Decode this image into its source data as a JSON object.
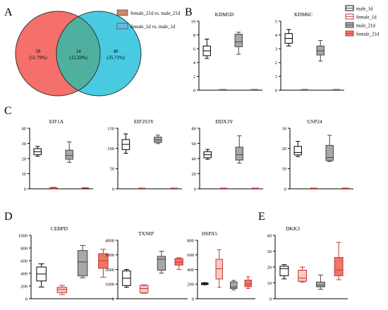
{
  "panel_labels": {
    "A": "A",
    "B": "B",
    "C": "C",
    "D": "D",
    "E": "E"
  },
  "colors": {
    "circle_a": "#f5706a",
    "circle_b": "#48cbe0",
    "legend_a": "#c48a6a",
    "legend_b": "#6cb8e0",
    "male_1d": "#000000",
    "female_1d": "#c0392b",
    "male_21d": "#444444",
    "female_21d": "#c0392b",
    "fill_male_21d": "#a8a8a8",
    "fill_female_21d": "#f1746a",
    "fill_female_1d_D": "#f9c8c8"
  },
  "chart_data": [
    {
      "type": "venn",
      "panel": "A",
      "sets": [
        {
          "name": "female_21d vs. male_21d",
          "only": "58",
          "only_pct": "(51.79%)"
        },
        {
          "name": "female_1d vs. male_1d",
          "only": "40",
          "only_pct": "(35.71%)"
        }
      ],
      "overlap": "14",
      "overlap_pct": "(12.50%)"
    },
    {
      "type": "legend",
      "panel": "B",
      "entries": [
        "male_1d",
        "female_1d",
        "male_21d",
        "female_21d"
      ]
    },
    {
      "type": "box",
      "panel": "B",
      "title": "KDM5D",
      "ylim": [
        0,
        10
      ],
      "yticks": [
        "0",
        "2",
        "4",
        "6",
        "8",
        "10"
      ],
      "groups": [
        {
          "name": "male_1d",
          "min": 4.6,
          "q1": 5.0,
          "median": 5.7,
          "q3": 6.4,
          "max": 7.4,
          "fill": "none"
        },
        {
          "name": "female_1d",
          "min": 0,
          "q1": 0,
          "median": 0,
          "q3": 0,
          "max": 0,
          "fill": "none"
        },
        {
          "name": "male_21d",
          "min": 5.2,
          "q1": 6.3,
          "median": 7.0,
          "q3": 8.1,
          "max": 8.4,
          "fill": "gray"
        },
        {
          "name": "female_21d",
          "min": 0,
          "q1": 0,
          "median": 0,
          "q3": 0,
          "max": 0,
          "fill": "red"
        }
      ]
    },
    {
      "type": "box",
      "panel": "B",
      "title": "KDM6C",
      "ylim": [
        0,
        5
      ],
      "yticks": [
        "0",
        "1",
        "2",
        "3",
        "4",
        "5"
      ],
      "groups": [
        {
          "name": "male_1d",
          "min": 3.2,
          "q1": 3.4,
          "median": 3.75,
          "q3": 4.1,
          "max": 4.4,
          "fill": "none"
        },
        {
          "name": "female_1d",
          "min": 0,
          "q1": 0,
          "median": 0,
          "q3": 0,
          "max": 0,
          "fill": "none"
        },
        {
          "name": "male_21d",
          "min": 2.1,
          "q1": 2.55,
          "median": 2.85,
          "q3": 3.2,
          "max": 3.6,
          "fill": "gray"
        },
        {
          "name": "female_21d",
          "min": 0,
          "q1": 0,
          "median": 0,
          "q3": 0,
          "max": 0,
          "fill": "red"
        }
      ]
    },
    {
      "type": "box",
      "panel": "C",
      "title": "EIF1A",
      "ylim": [
        0,
        40
      ],
      "yticks": [
        "0",
        "10",
        "20",
        "30",
        "40"
      ],
      "groups": [
        {
          "name": "male_1d",
          "min": 21.5,
          "q1": 22.5,
          "median": 24.5,
          "q3": 26.5,
          "max": 28.0,
          "fill": "none"
        },
        {
          "name": "female_1d",
          "min": 0.1,
          "q1": 0.3,
          "median": 0.5,
          "q3": 0.8,
          "max": 1.0,
          "fill": "none"
        },
        {
          "name": "male_21d",
          "min": 17.5,
          "q1": 19.5,
          "median": 22.0,
          "q3": 25.5,
          "max": 31.0,
          "fill": "gray"
        },
        {
          "name": "female_21d",
          "min": 0.0,
          "q1": 0.1,
          "median": 0.2,
          "q3": 0.4,
          "max": 0.5,
          "fill": "red"
        }
      ]
    },
    {
      "type": "box",
      "panel": "C",
      "title": "EIF2S3Y",
      "ylim": [
        0,
        150
      ],
      "yticks": [
        "0",
        "50",
        "100",
        "150"
      ],
      "groups": [
        {
          "name": "male_1d",
          "min": 88,
          "q1": 97,
          "median": 110,
          "q3": 122,
          "max": 136,
          "fill": "none"
        },
        {
          "name": "female_1d",
          "min": 0,
          "q1": 0,
          "median": 0,
          "q3": 0,
          "max": 0,
          "fill": "none"
        },
        {
          "name": "male_21d",
          "min": 112,
          "q1": 115,
          "median": 121,
          "q3": 128,
          "max": 133,
          "fill": "gray"
        },
        {
          "name": "female_21d",
          "min": 0,
          "q1": 0,
          "median": 0,
          "q3": 0,
          "max": 0,
          "fill": "red"
        }
      ]
    },
    {
      "type": "box",
      "panel": "C",
      "title": "DDX3Y",
      "ylim": [
        0,
        80
      ],
      "yticks": [
        "0",
        "20",
        "40",
        "60",
        "80"
      ],
      "groups": [
        {
          "name": "male_1d",
          "min": 39,
          "q1": 41,
          "median": 45,
          "q3": 49,
          "max": 52,
          "fill": "none"
        },
        {
          "name": "female_1d",
          "min": 0,
          "q1": 0,
          "median": 0,
          "q3": 0,
          "max": 0,
          "fill": "none"
        },
        {
          "name": "male_21d",
          "min": 34,
          "q1": 38,
          "median": 45,
          "q3": 55,
          "max": 70,
          "fill": "gray"
        },
        {
          "name": "female_21d",
          "min": 0,
          "q1": 0,
          "median": 0,
          "q3": 0,
          "max": 0,
          "fill": "red"
        }
      ]
    },
    {
      "type": "box",
      "panel": "C",
      "title": "USP24",
      "ylim": [
        0,
        30
      ],
      "yticks": [
        "0",
        "10",
        "20",
        "30"
      ],
      "groups": [
        {
          "name": "male_1d",
          "min": 16.0,
          "q1": 16.8,
          "median": 18.0,
          "q3": 21.0,
          "max": 23.5,
          "fill": "none"
        },
        {
          "name": "female_1d",
          "min": 0,
          "q1": 0,
          "median": 0,
          "q3": 0,
          "max": 0,
          "fill": "none"
        },
        {
          "name": "male_21d",
          "min": 13.5,
          "q1": 14.0,
          "median": 15.5,
          "q3": 21.5,
          "max": 26.5,
          "fill": "gray"
        },
        {
          "name": "female_21d",
          "min": 0,
          "q1": 0,
          "median": 0,
          "q3": 0,
          "max": 0,
          "fill": "red"
        }
      ]
    },
    {
      "type": "box",
      "panel": "D",
      "title": "CEBPD",
      "ylim": [
        0,
        1000
      ],
      "yticks": [
        "0",
        "200",
        "400",
        "600",
        "800",
        "1000"
      ],
      "groups": [
        {
          "name": "male_1d",
          "min": 185,
          "q1": 280,
          "median": 390,
          "q3": 500,
          "max": 550,
          "fill": "none"
        },
        {
          "name": "female_1d",
          "min": 65,
          "q1": 95,
          "median": 145,
          "q3": 180,
          "max": 210,
          "fill": "pink"
        },
        {
          "name": "male_21d",
          "min": 330,
          "q1": 360,
          "median": 580,
          "q3": 760,
          "max": 840,
          "fill": "gray"
        },
        {
          "name": "female_21d",
          "min": 340,
          "q1": 480,
          "median": 600,
          "q3": 710,
          "max": 780,
          "fill": "red"
        }
      ]
    },
    {
      "type": "box",
      "panel": "D",
      "title": "TXNIP",
      "ylim": [
        0,
        4000
      ],
      "yticks": [
        "0",
        "1000",
        "2000",
        "3000",
        "4000"
      ],
      "groups": [
        {
          "name": "male_1d",
          "min": 780,
          "q1": 900,
          "median": 1400,
          "q3": 1900,
          "max": 2000,
          "fill": "none"
        },
        {
          "name": "female_1d",
          "min": 370,
          "q1": 400,
          "median": 700,
          "q3": 920,
          "max": 950,
          "fill": "pink"
        },
        {
          "name": "male_21d",
          "min": 1750,
          "q1": 1950,
          "median": 2700,
          "q3": 2900,
          "max": 3250,
          "fill": "gray"
        },
        {
          "name": "female_21d",
          "min": 2000,
          "q1": 2300,
          "median": 2500,
          "q3": 2750,
          "max": 2800,
          "fill": "red"
        }
      ]
    },
    {
      "type": "box",
      "panel": "D",
      "title": "HSPA5",
      "ylim": [
        0,
        800
      ],
      "yticks": [
        "0",
        "200",
        "400",
        "600",
        "800"
      ],
      "groups": [
        {
          "name": "male_1d",
          "min": 190,
          "q1": 195,
          "median": 205,
          "q3": 215,
          "max": 220,
          "fill": "none"
        },
        {
          "name": "female_1d",
          "min": 155,
          "q1": 270,
          "median": 410,
          "q3": 540,
          "max": 670,
          "fill": "pink"
        },
        {
          "name": "male_21d",
          "min": 120,
          "q1": 140,
          "median": 160,
          "q3": 230,
          "max": 250,
          "fill": "gray"
        },
        {
          "name": "female_21d",
          "min": 140,
          "q1": 165,
          "median": 200,
          "q3": 255,
          "max": 300,
          "fill": "red"
        }
      ]
    },
    {
      "type": "box",
      "panel": "E",
      "title": "DKK3",
      "ylim": [
        0,
        40
      ],
      "yticks": [
        "0",
        "10",
        "20",
        "30",
        "40"
      ],
      "groups": [
        {
          "name": "male_1d",
          "min": 12.5,
          "q1": 14.5,
          "median": 19.0,
          "q3": 20.5,
          "max": 21.5,
          "fill": "none"
        },
        {
          "name": "female_1d",
          "min": 10.5,
          "q1": 11.0,
          "median": 13.0,
          "q3": 18.0,
          "max": 20.0,
          "fill": "pink"
        },
        {
          "name": "male_21d",
          "min": 6.0,
          "q1": 7.5,
          "median": 8.5,
          "q3": 10.5,
          "max": 15.0,
          "fill": "gray"
        },
        {
          "name": "female_21d",
          "min": 12.0,
          "q1": 14.5,
          "median": 18.0,
          "q3": 26.0,
          "max": 35.5,
          "fill": "red"
        }
      ]
    }
  ]
}
